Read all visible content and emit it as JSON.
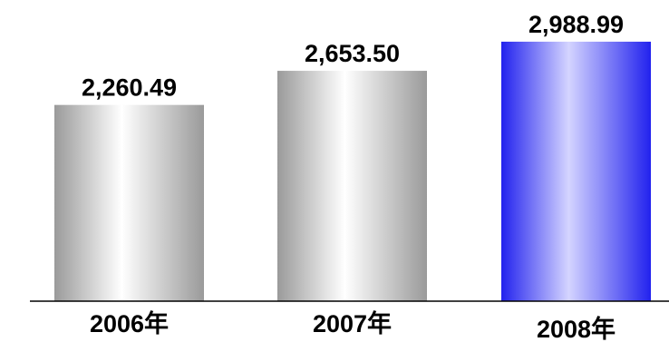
{
  "chart_data": {
    "type": "bar",
    "categories": [
      "2006年",
      "2007年",
      "2008年"
    ],
    "values": [
      2260.49,
      2653.5,
      2988.99
    ],
    "value_labels": [
      "2,260.49",
      "2,653.50",
      "2,988.99"
    ],
    "title": "",
    "xlabel": "",
    "ylabel": "",
    "ylim": [
      0,
      3000
    ],
    "grid": false,
    "legend": "none",
    "bar_colors": [
      "#9a9a9a",
      "#9a9a9a",
      "#2222ee"
    ],
    "bar_highlights": [
      "#ffffff",
      "#ffffff",
      "#d4d4ff"
    ],
    "axis_color": "#000000"
  }
}
